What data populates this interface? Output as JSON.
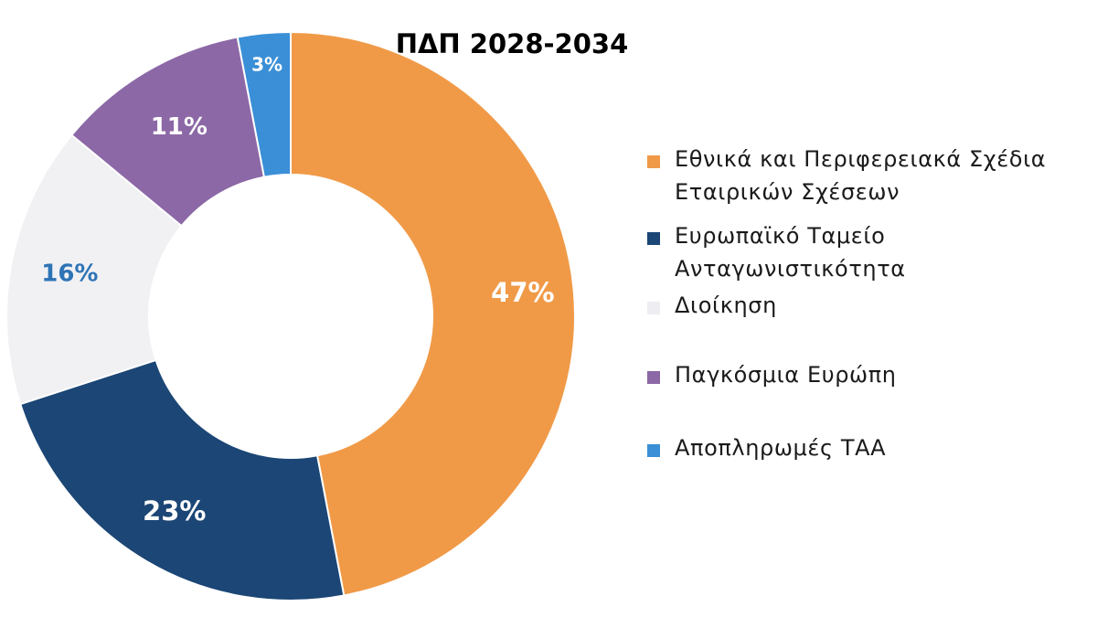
{
  "chart_data": {
    "type": "pie",
    "variant": "donut",
    "title": "ΠΔΠ 2028-2034",
    "slices": [
      {
        "label": "Εθνικά και Περιφερειακά Σχέδια Εταιρικών Σχέσεων",
        "value": 47,
        "display": "47%",
        "color": "#F09A48",
        "label_color": "#FFFFFF"
      },
      {
        "label": "Ευρωπαϊκό Ταμείο Ανταγωνιστικότητα",
        "value": 23,
        "display": "23%",
        "color": "#1B4675",
        "label_color": "#FFFFFF"
      },
      {
        "label": "Διοίκηση",
        "value": 16,
        "display": "16%",
        "color": "#F1F1F4",
        "label_color": "#2E74B5"
      },
      {
        "label": "Παγκόσμια Ευρώπη",
        "value": 11,
        "display": "11%",
        "color": "#8C68A6",
        "label_color": "#FFFFFF"
      },
      {
        "label": "Αποπληρωμές ΤΑΑ",
        "value": 3,
        "display": "3%",
        "color": "#3A8FD6",
        "label_color": "#FFFFFF"
      }
    ],
    "legend_position": "right"
  }
}
